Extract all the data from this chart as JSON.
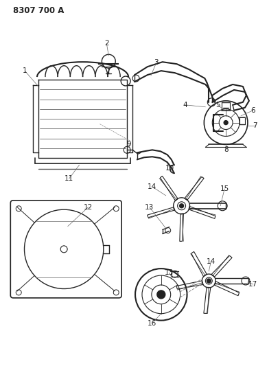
{
  "title": "8307 700 A",
  "bg_color": "#ffffff",
  "line_color": "#222222",
  "title_fontsize": 8.5,
  "label_fontsize": 7.5
}
